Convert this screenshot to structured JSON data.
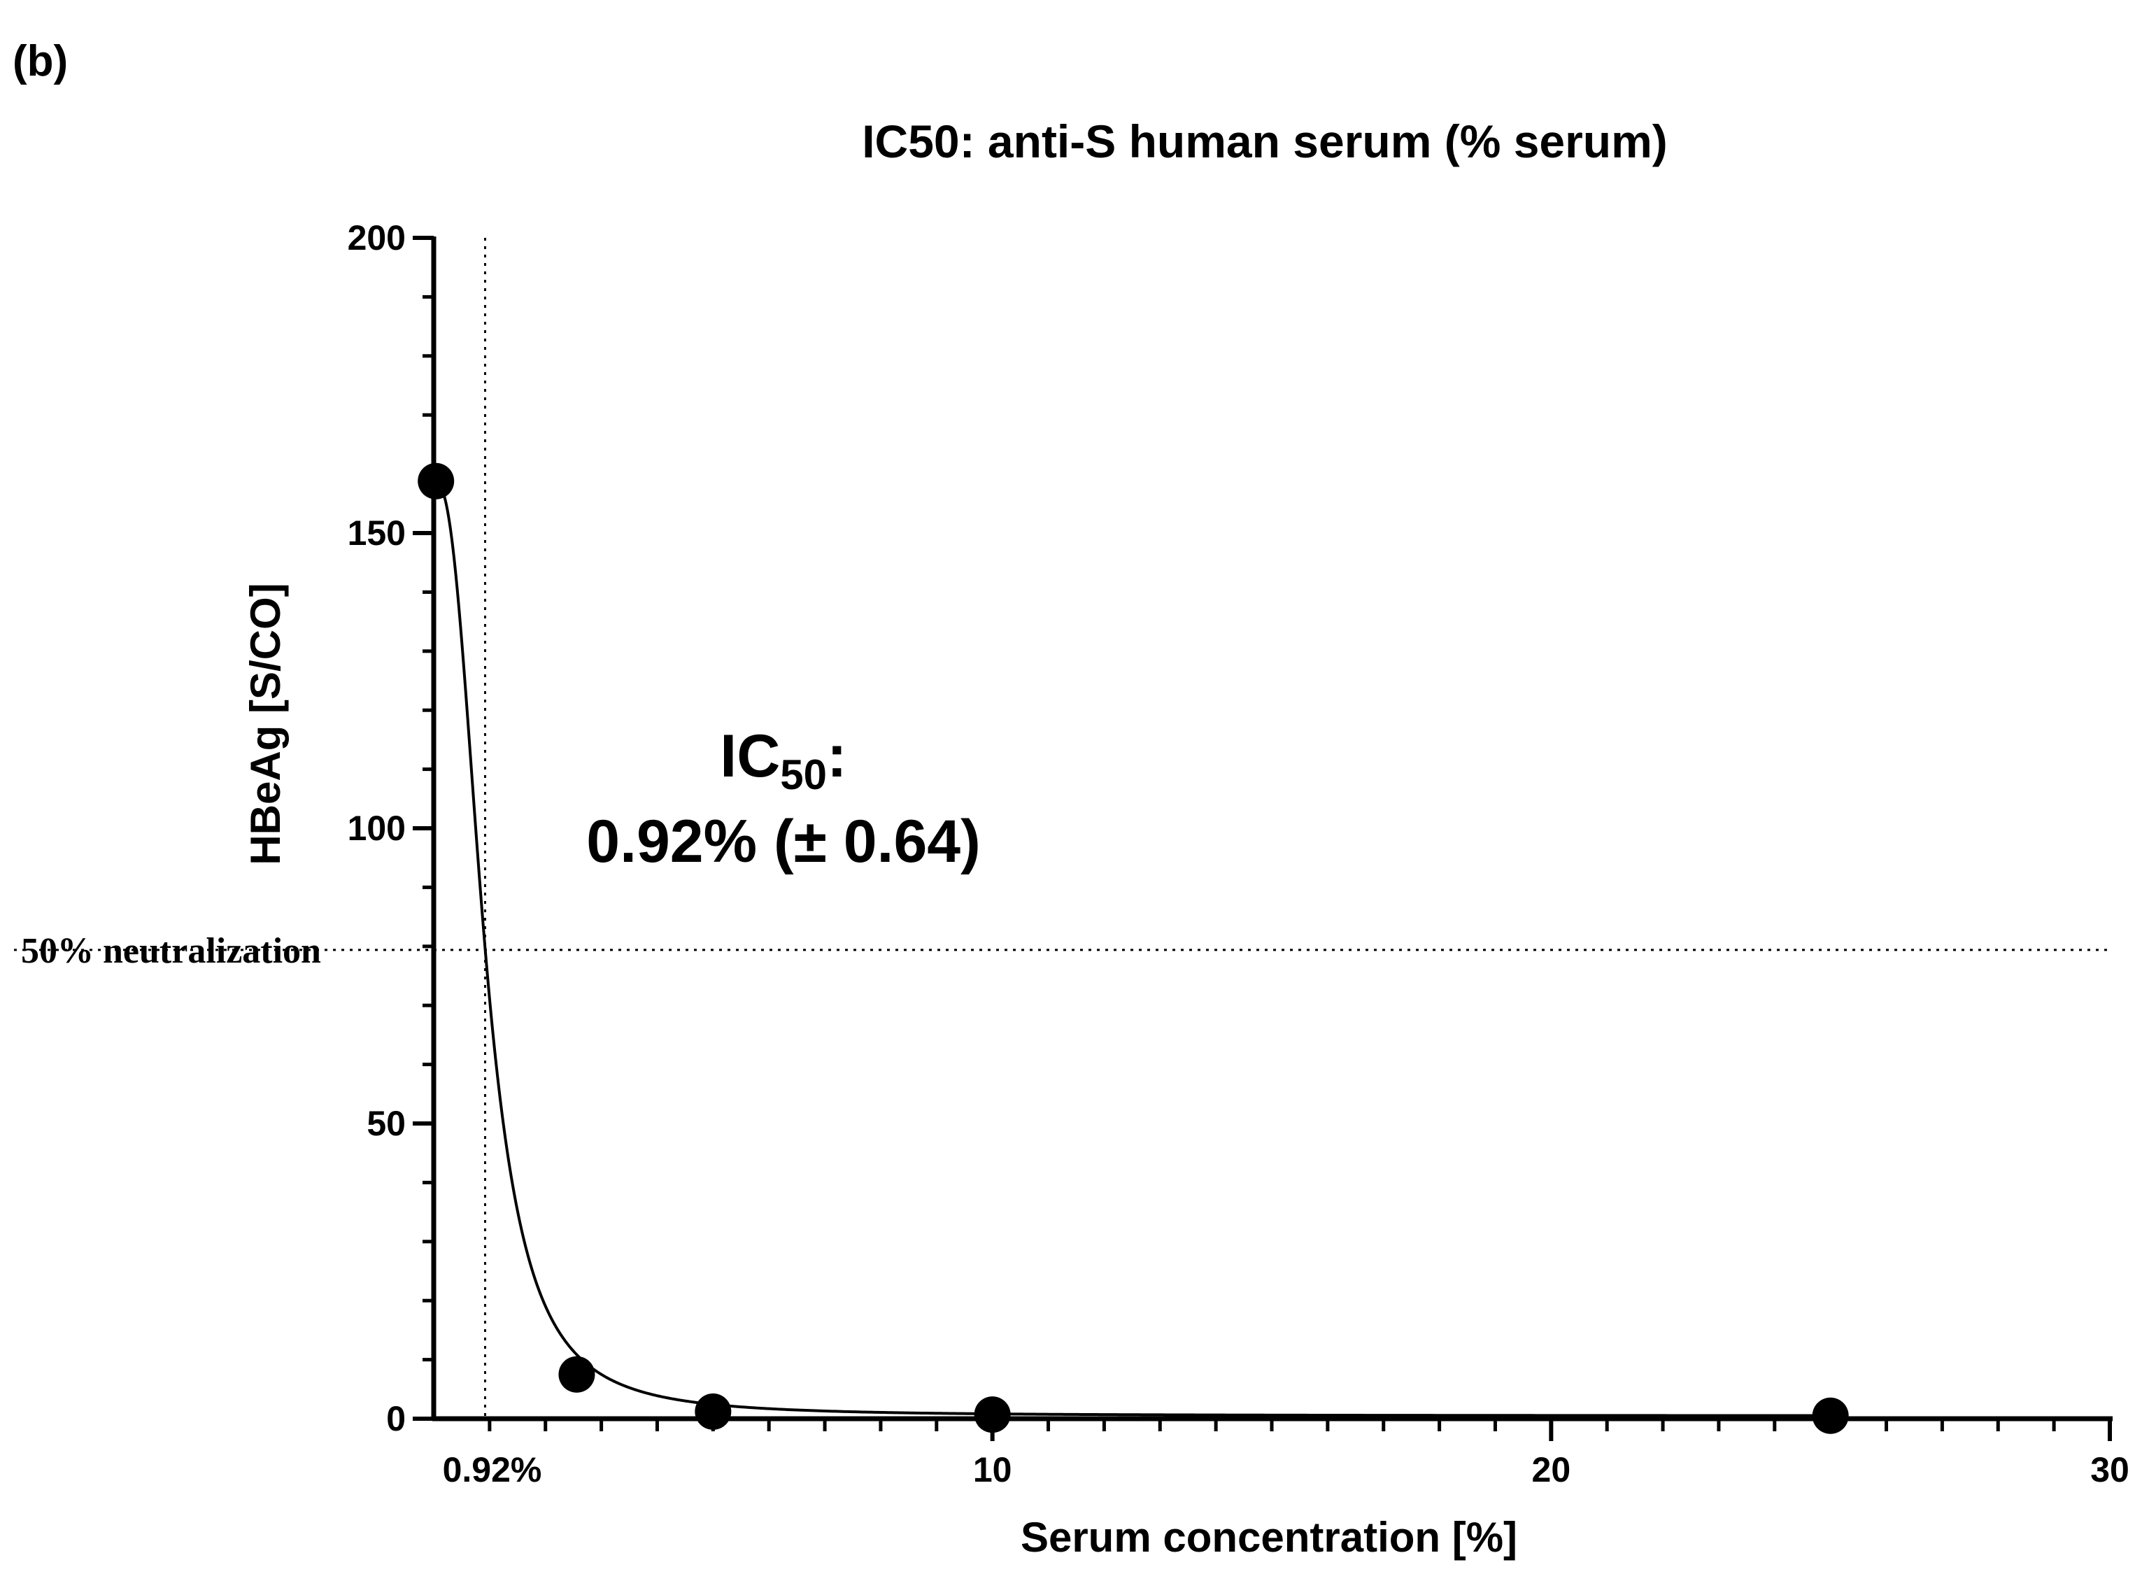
{
  "panel_label": "(b)",
  "chart_data": {
    "type": "scatter",
    "title": "IC50: anti-S human serum (% serum)",
    "xlabel": "Serum concentration [%]",
    "ylabel": "HBeAg [S/CO]",
    "xlim": [
      0,
      30
    ],
    "ylim": [
      0,
      200
    ],
    "x_ticks": [
      10,
      20,
      30
    ],
    "x_tick_labels": [
      "10",
      "20",
      "30"
    ],
    "y_ticks": [
      0,
      50,
      100,
      150,
      200
    ],
    "y_tick_labels": [
      "0",
      "50",
      "100",
      "150",
      "200"
    ],
    "grid": false,
    "legend": "none",
    "series": [
      {
        "points": [
          {
            "x": 0.04,
            "y": 158.8
          },
          {
            "x": 2.56,
            "y": 7.5
          },
          {
            "x": 5.0,
            "y": 1.2
          },
          {
            "x": 10.0,
            "y": 0.7
          },
          {
            "x": 25.0,
            "y": 0.5
          }
        ],
        "fit": "sigmoidal"
      }
    ],
    "reference_lines": [
      {
        "axis": "x",
        "value": 0.92,
        "label": "0.92%",
        "style": "dotted"
      },
      {
        "axis": "y",
        "value": 79.4,
        "label": "50% neutralization",
        "style": "dotted"
      }
    ],
    "annotation": {
      "line1_main": "IC",
      "line1_sub": "50",
      "line1_suffix": ":",
      "line2": "0.92% (± 0.64)"
    },
    "colors": {
      "points": "#000000",
      "line": "#000000"
    }
  }
}
